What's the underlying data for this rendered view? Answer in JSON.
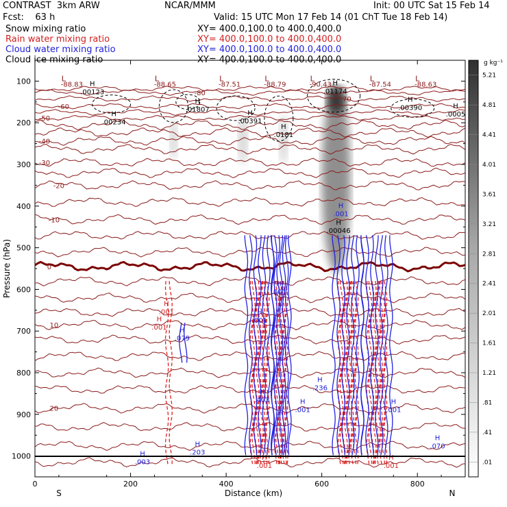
{
  "header": {
    "top_left": "CONTRAST  3km ARW",
    "top_center": "NCAR/MMM",
    "top_right": "Init: 00 UTC Sat 15 Feb 14",
    "fcst": "Fcst:    63 h",
    "valid": "Valid: 15 UTC Mon 17 Feb 14 (01 ChT Tue 18 Feb 14)"
  },
  "fields": [
    {
      "name": "Snow mixing ratio",
      "xy": "XY= 400.0,100.0 to 400.0,400.0",
      "color": "#000000"
    },
    {
      "name": "Rain water mixing ratio",
      "xy": "XY= 400.0,100.0 to 400.0,400.0",
      "color": "#d02020"
    },
    {
      "name": "Cloud water mixing ratio",
      "xy": "XY= 400.0,100.0 to 400.0,400.0",
      "color": "#2020d8"
    },
    {
      "name": "Cloud ice mixing ratio",
      "xy": "XY= 400.0,100.0 to 400.0,400.0",
      "color": "#000000"
    }
  ],
  "chart_data": {
    "type": "contour_cross_section",
    "xlabel": "Distance (km)",
    "ylabel": "Pressure (hPa)",
    "xlim": [
      0,
      900
    ],
    "ylim": [
      1050,
      50
    ],
    "x_ticks": [
      0,
      200,
      400,
      600,
      800
    ],
    "y_ticks": [
      100,
      200,
      300,
      400,
      500,
      600,
      700,
      800,
      900,
      1000
    ],
    "x_end_labels": {
      "left": "S",
      "right": "N"
    },
    "colorbar": {
      "unit": "g kg⁻¹",
      "levels": [
        ".01",
        ".41",
        ".81",
        "1.21",
        "1.61",
        "2.01",
        "2.41",
        "2.81",
        "3.21",
        "3.61",
        "4.01",
        "4.41",
        "4.81",
        "5.21"
      ]
    },
    "temperature_contours": [
      {
        "value": "-80",
        "p": 127,
        "label_x": 345
      },
      {
        "value": "-70",
        "p": 142,
        "label_x": 650
      },
      {
        "value": "-60",
        "p": 160,
        "label_x": 60
      },
      {
        "value": "-50",
        "p": 188,
        "label_x": 20
      },
      {
        "value": "-40",
        "p": 243,
        "label_x": 20
      },
      {
        "value": "-30",
        "p": 295,
        "label_x": 20
      },
      {
        "value": "-20",
        "p": 350,
        "label_x": 50
      },
      {
        "value": "-10",
        "p": 432,
        "label_x": 40
      },
      {
        "value": "0",
        "p": 545,
        "label_x": 30
      },
      {
        "value": "10",
        "p": 685,
        "label_x": 40
      },
      {
        "value": "20",
        "p": 885,
        "label_x": 40
      }
    ],
    "low_labels": [
      {
        "label": "L",
        "value": "-88.83",
        "x": 60
      },
      {
        "label": "L",
        "value": "-88.65",
        "x": 255
      },
      {
        "label": "L",
        "value": "-87.51",
        "x": 390
      },
      {
        "label": "L",
        "value": "-88.79",
        "x": 485
      },
      {
        "label": "L",
        "value": "-90.43",
        "x": 580
      },
      {
        "label": "L",
        "value": "-87.54",
        "x": 705
      },
      {
        "label": "L",
        "value": "-88.63",
        "x": 800
      }
    ],
    "cloud_ice_maxima": [
      {
        "label": ".00123",
        "x": 120,
        "p": 125
      },
      {
        "label": ".01807",
        "x": 340,
        "p": 167
      },
      {
        "label": ".00234",
        "x": 165,
        "p": 197
      },
      {
        "label": ".00391",
        "x": 450,
        "p": 195
      },
      {
        "label": ".0181",
        "x": 520,
        "p": 228
      },
      {
        "label": ".01174",
        "x": 628,
        "p": 123
      },
      {
        "label": ".00390",
        "x": 785,
        "p": 163
      },
      {
        "label": ".0005",
        "x": 880,
        "p": 178
      }
    ],
    "snow_maxima": [
      {
        "label": ".00046",
        "x": 635,
        "p": 458
      }
    ],
    "cloud_water_maxima": [
      {
        "label": ".001",
        "x": 640,
        "p": 418
      },
      {
        "label": ".001",
        "x": 470,
        "p": 673
      },
      {
        "label": ".079",
        "x": 308,
        "p": 716
      },
      {
        "label": ".001",
        "x": 510,
        "p": 605
      },
      {
        "label": ".236",
        "x": 596,
        "p": 835
      },
      {
        "label": ".001",
        "x": 560,
        "p": 888
      },
      {
        "label": ".001",
        "x": 750,
        "p": 888
      },
      {
        "label": ".203",
        "x": 340,
        "p": 990
      },
      {
        "label": ".003",
        "x": 225,
        "p": 1013
      },
      {
        "label": ".070",
        "x": 842,
        "p": 975
      },
      {
        "label": ".403",
        "x": 475,
        "p": 864
      }
    ],
    "rain_maxima": [
      {
        "label": ".001",
        "x": 275,
        "p": 653
      },
      {
        "label": ".001",
        "x": 260,
        "p": 690
      },
      {
        "label": ".001",
        "x": 480,
        "p": 1022
      },
      {
        "label": ".001",
        "x": 745,
        "p": 1022
      }
    ],
    "convective_columns": [
      {
        "x": 470,
        "half_width": 28
      },
      {
        "x": 515,
        "half_width": 18
      },
      {
        "x": 655,
        "half_width": 30
      },
      {
        "x": 715,
        "half_width": 30
      }
    ],
    "snow_plumes": [
      {
        "x": 630,
        "p_top": 110,
        "p_bottom": 560,
        "width": 60
      },
      {
        "x": 435,
        "p_top": 180,
        "p_bottom": 300,
        "width": 20
      },
      {
        "x": 520,
        "p_top": 180,
        "p_bottom": 300,
        "width": 18
      },
      {
        "x": 290,
        "p_top": 190,
        "p_bottom": 290,
        "width": 16
      }
    ]
  }
}
